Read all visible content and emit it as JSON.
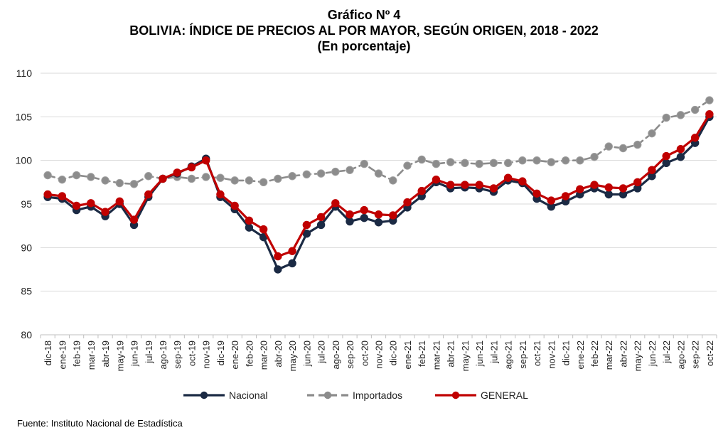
{
  "header": {
    "line1": "Gráfico Nº 4",
    "line2": "BOLIVIA: ÍNDICE DE PRECIOS AL POR MAYOR, SEGÚN ORIGEN, 2018 - 2022",
    "line3": "(En porcentaje)"
  },
  "footer": {
    "source": "Fuente: Instituto Nacional de Estadística"
  },
  "chart_data": {
    "type": "line",
    "ylim": [
      80,
      110
    ],
    "yticks": [
      80,
      85,
      90,
      95,
      100,
      105,
      110
    ],
    "grid": "horizontal",
    "legend_position": "bottom",
    "categories": [
      "dic-18",
      "ene-19",
      "feb-19",
      "mar-19",
      "abr-19",
      "may-19",
      "jun-19",
      "jul-19",
      "ago-19",
      "sep-19",
      "oct-19",
      "nov-19",
      "dic-19",
      "ene-20",
      "feb-20",
      "mar-20",
      "abr-20",
      "may-20",
      "jun-20",
      "jul-20",
      "ago-20",
      "sep-20",
      "oct-20",
      "nov-20",
      "dic-20",
      "ene-21",
      "feb-21",
      "mar-21",
      "abr-21",
      "may-21",
      "jun-21",
      "jul-21",
      "ago-21",
      "sep-21",
      "oct-21",
      "nov-21",
      "dic-21",
      "ene-22",
      "feb-22",
      "mar-22",
      "abr-22",
      "may-22",
      "jun-22",
      "jul-22",
      "ago-22",
      "sep-22",
      "oct-22"
    ],
    "series": [
      {
        "name": "Nacional",
        "color": "#1b2a44",
        "style": "solid",
        "values": [
          95.8,
          95.6,
          94.3,
          94.7,
          93.6,
          95.0,
          92.6,
          95.8,
          97.9,
          98.5,
          99.3,
          100.2,
          95.8,
          94.4,
          92.3,
          91.2,
          87.5,
          88.2,
          91.6,
          92.6,
          94.7,
          93.0,
          93.4,
          92.9,
          93.1,
          94.6,
          95.9,
          97.5,
          96.8,
          96.9,
          96.8,
          96.4,
          97.7,
          97.4,
          95.6,
          94.7,
          95.3,
          96.1,
          96.8,
          96.1,
          96.1,
          96.8,
          98.2,
          99.7,
          100.4,
          102.0,
          105.0
        ]
      },
      {
        "name": "Importados",
        "color": "#8c8c8c",
        "style": "dashed",
        "values": [
          98.3,
          97.8,
          98.3,
          98.1,
          97.7,
          97.4,
          97.3,
          98.2,
          97.9,
          98.1,
          97.9,
          98.1,
          98.0,
          97.7,
          97.7,
          97.5,
          97.9,
          98.2,
          98.4,
          98.5,
          98.7,
          98.9,
          99.6,
          98.5,
          97.7,
          99.4,
          100.1,
          99.6,
          99.8,
          99.7,
          99.6,
          99.7,
          99.7,
          100.0,
          100.0,
          99.8,
          100.0,
          100.0,
          100.4,
          101.6,
          101.4,
          101.8,
          103.1,
          104.9,
          105.2,
          105.8,
          106.9
        ]
      },
      {
        "name": "GENERAL",
        "color": "#c00000",
        "style": "solid",
        "values": [
          96.1,
          95.9,
          94.8,
          95.1,
          94.1,
          95.3,
          93.2,
          96.1,
          97.9,
          98.6,
          99.2,
          100.0,
          96.1,
          94.8,
          93.1,
          92.1,
          89.0,
          89.6,
          92.6,
          93.5,
          95.1,
          93.8,
          94.3,
          93.8,
          93.7,
          95.2,
          96.5,
          97.8,
          97.2,
          97.2,
          97.2,
          96.8,
          98.0,
          97.6,
          96.2,
          95.4,
          95.9,
          96.7,
          97.2,
          96.9,
          96.8,
          97.5,
          98.9,
          100.5,
          101.3,
          102.6,
          105.3
        ]
      }
    ]
  }
}
